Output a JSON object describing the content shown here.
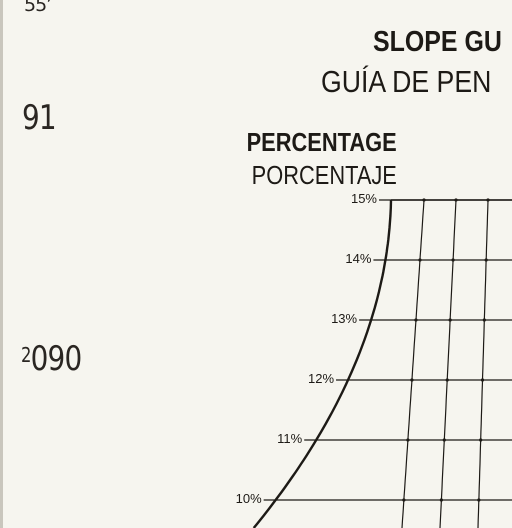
{
  "margin_marks": {
    "top": "55’",
    "middle": "91",
    "lower_sup": "2",
    "lower_main": "090"
  },
  "title": {
    "en": "SLOPE GU",
    "es": "GUÍA DE PEN"
  },
  "axis": {
    "heading_en": "PERCENTAGE",
    "heading_es": "PORCENTAJE"
  },
  "chart_data": {
    "type": "other",
    "ticks": [
      "15%",
      "14%",
      "13%",
      "12%",
      "11%",
      "10%"
    ],
    "values": [
      15,
      14,
      13,
      12,
      11,
      10
    ]
  },
  "colors": {
    "paper": "#f6f5ef",
    "ink": "#1d1a16"
  }
}
